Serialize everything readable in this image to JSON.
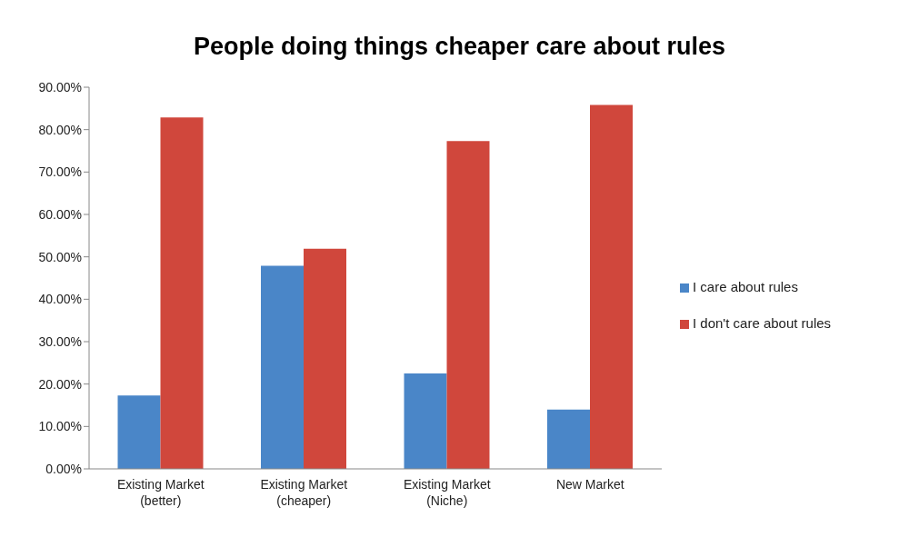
{
  "chart_data": {
    "type": "bar",
    "title": "People doing things cheaper care about rules",
    "categories": [
      "Existing Market (better)",
      "Existing Market (cheaper)",
      "Existing Market (Niche)",
      "New Market"
    ],
    "series": [
      {
        "name": "I care about rules",
        "color": "#4a86c8",
        "values": [
          17.3,
          47.9,
          22.5,
          14.0
        ]
      },
      {
        "name": "I don't care about rules",
        "color": "#d0473c",
        "values": [
          82.9,
          51.9,
          77.3,
          85.8
        ]
      }
    ],
    "ylim": [
      0,
      90
    ],
    "yticks": [
      {
        "value": 0,
        "label": "0.00%"
      },
      {
        "value": 10,
        "label": "10.00%"
      },
      {
        "value": 20,
        "label": "20.00%"
      },
      {
        "value": 30,
        "label": "30.00%"
      },
      {
        "value": 40,
        "label": "40.00%"
      },
      {
        "value": 50,
        "label": "50.00%"
      },
      {
        "value": 60,
        "label": "60.00%"
      },
      {
        "value": 70,
        "label": "70.00%"
      },
      {
        "value": 80,
        "label": "80.00%"
      },
      {
        "value": 90,
        "label": "90.00%"
      }
    ],
    "grid": false,
    "legend": "right"
  }
}
